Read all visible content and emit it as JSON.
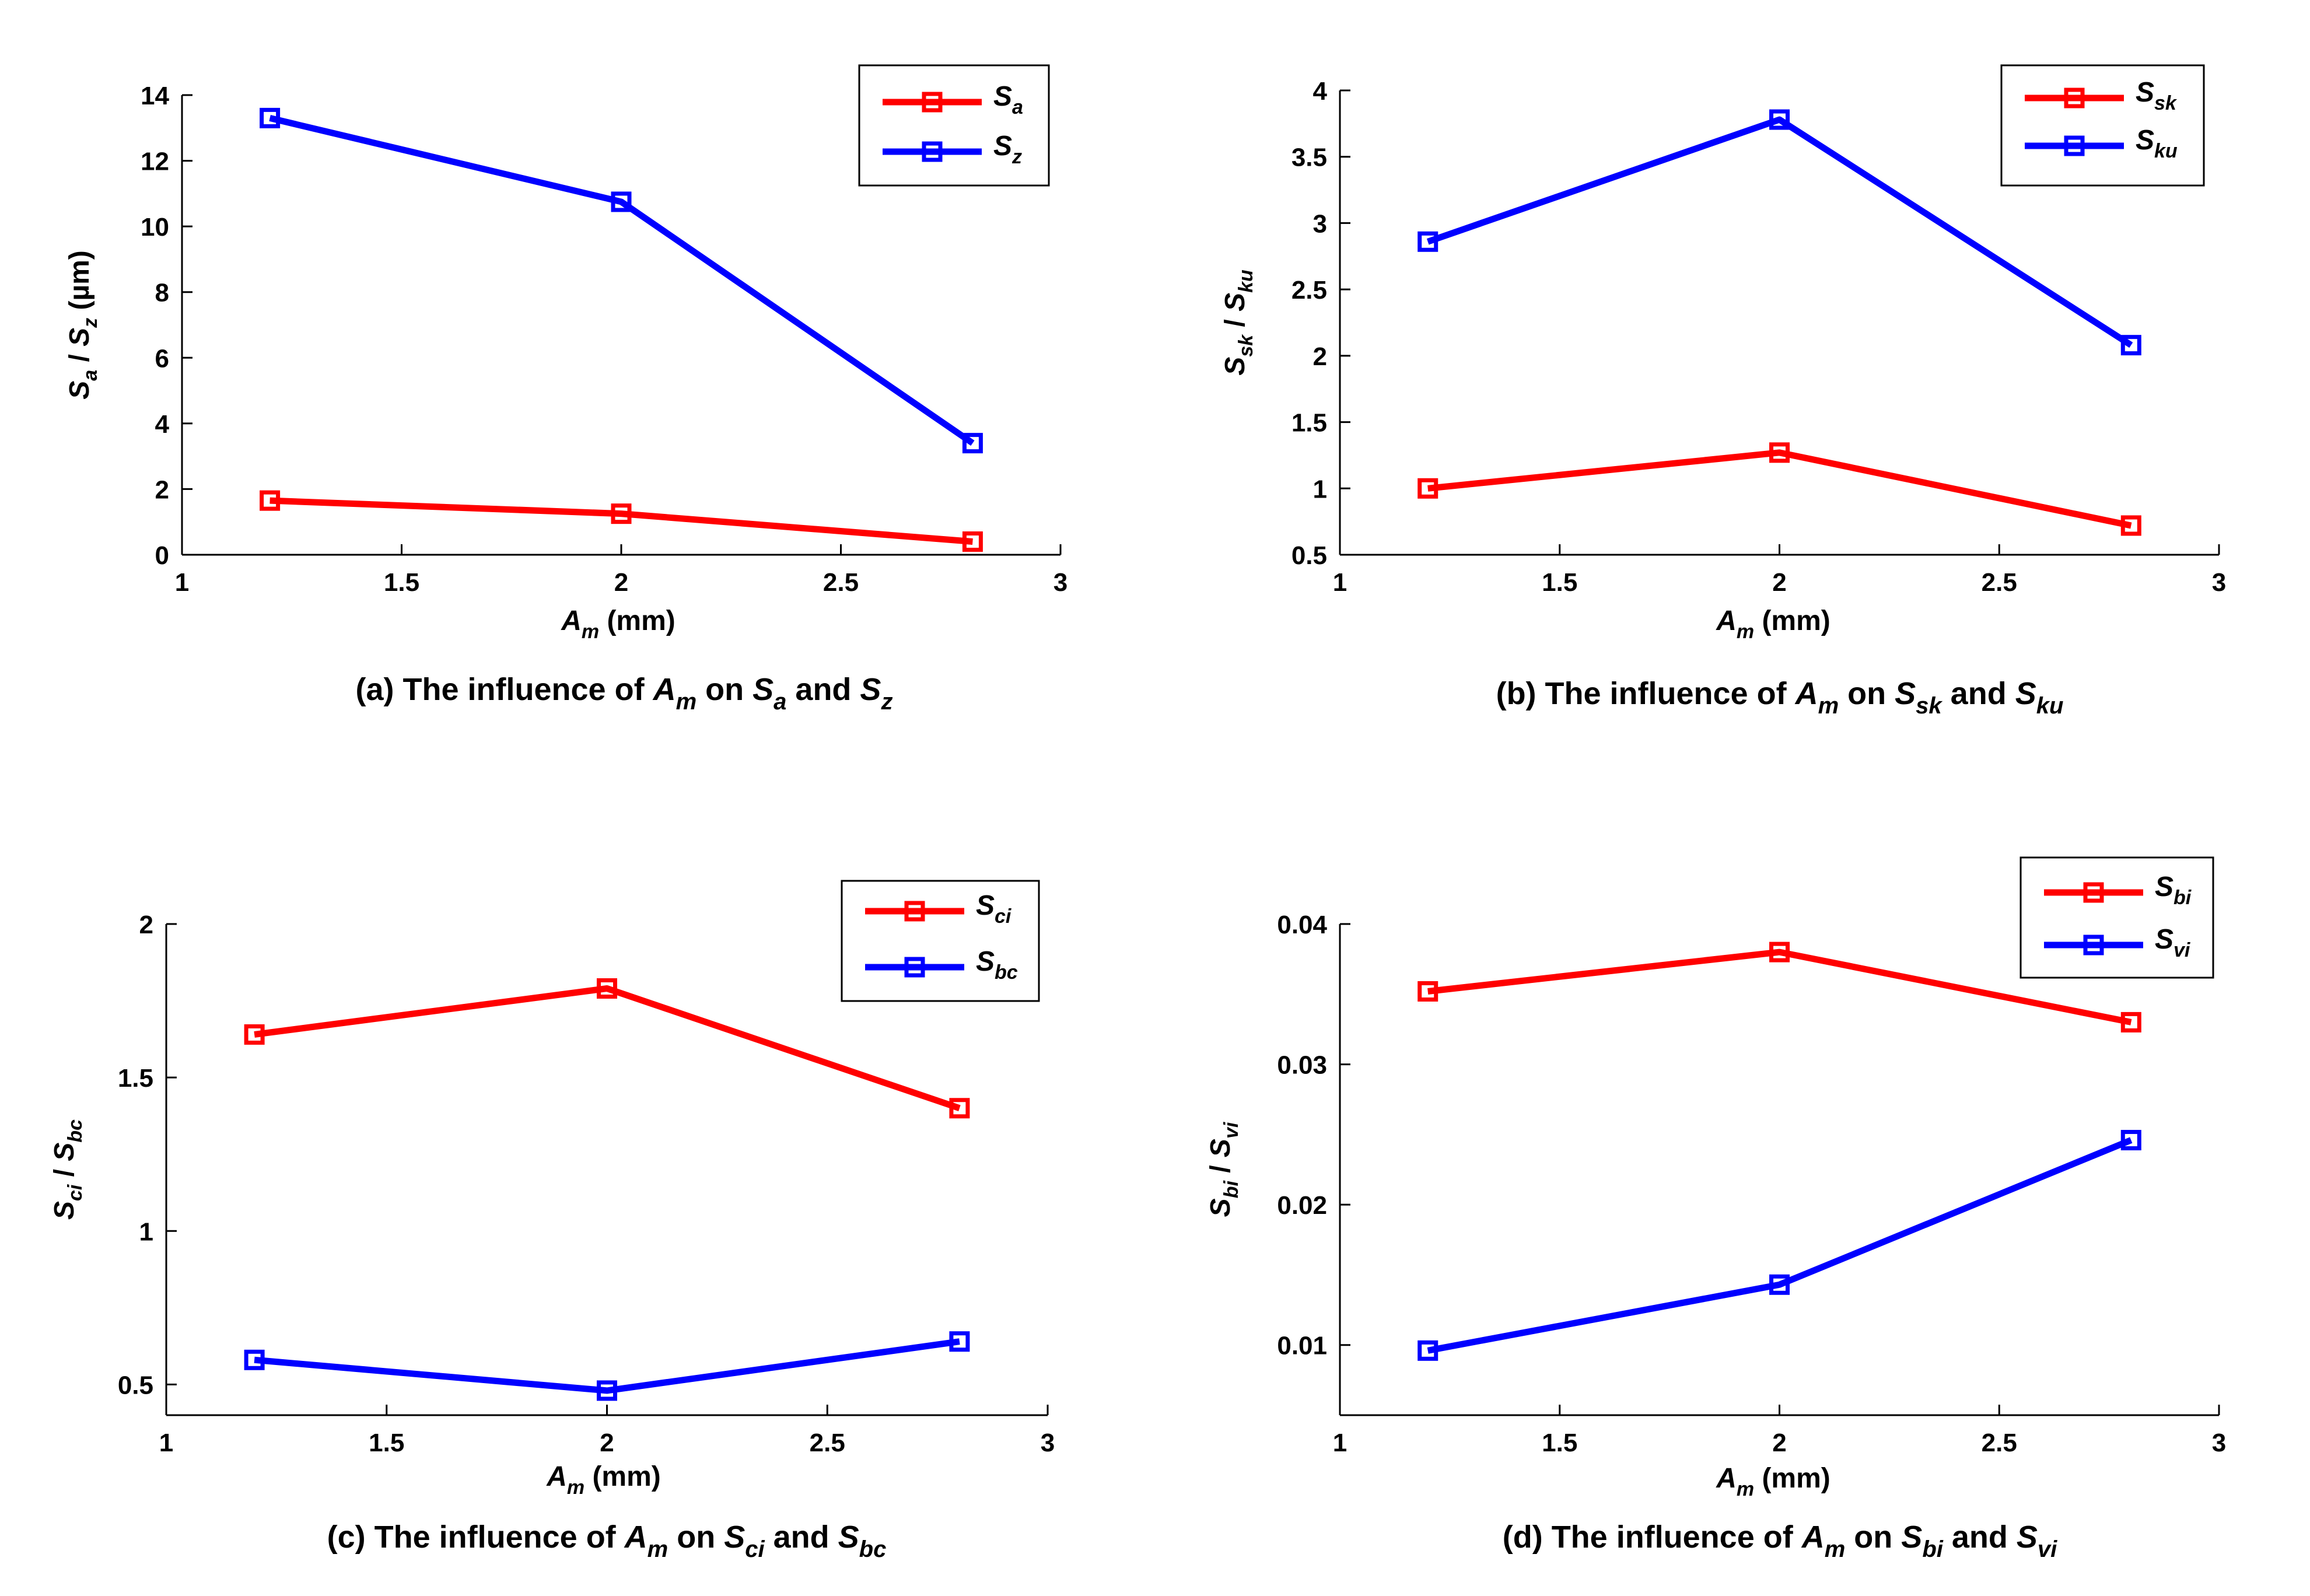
{
  "chart_data": [
    {
      "type": "line",
      "id": "a",
      "caption": {
        "prefix": "(a) The influence of ",
        "subject": "A",
        "subject_sub": "m",
        "mid": " on ",
        "p1": "S",
        "p1_sub": "a",
        "joiner": " and ",
        "p2": "S",
        "p2_sub": "z"
      },
      "xlabel": {
        "main": "A",
        "sub": "m",
        "unit": " (mm)"
      },
      "ylabel": {
        "s1": "S",
        "s1_sub": "a",
        "sep": " / ",
        "s2": "S",
        "s2_sub": "z",
        "unit": " (µm)"
      },
      "xlim": [
        1,
        3
      ],
      "ylim": [
        0,
        14
      ],
      "xticks": [
        1,
        1.5,
        2,
        2.5,
        3
      ],
      "xtick_labels": [
        "1",
        "1.5",
        "2",
        "2.5",
        "3"
      ],
      "yticks": [
        0,
        2,
        4,
        6,
        8,
        10,
        12,
        14
      ],
      "ytick_labels": [
        "0",
        "2",
        "4",
        "6",
        "8",
        "10",
        "12",
        "14"
      ],
      "x": [
        1.2,
        2.0,
        2.8
      ],
      "series": [
        {
          "name": "S",
          "sub": "a",
          "color": "#ff0000",
          "values": [
            1.65,
            1.25,
            0.4
          ]
        },
        {
          "name": "S",
          "sub": "z",
          "color": "#0000ff",
          "values": [
            13.3,
            10.75,
            3.4
          ]
        }
      ],
      "legend": "top-right",
      "grid": false
    },
    {
      "type": "line",
      "id": "b",
      "caption": {
        "prefix": "(b) The influence of ",
        "subject": "A",
        "subject_sub": "m",
        "mid": " on ",
        "p1": "S",
        "p1_sub": "sk",
        "joiner": " and ",
        "p2": "S",
        "p2_sub": "ku"
      },
      "xlabel": {
        "main": "A",
        "sub": "m",
        "unit": " (mm)"
      },
      "ylabel": {
        "s1": "S",
        "s1_sub": "sk",
        "sep": " / ",
        "s2": "S",
        "s2_sub": "ku",
        "unit": ""
      },
      "xlim": [
        1,
        3
      ],
      "ylim": [
        0.5,
        4
      ],
      "xticks": [
        1,
        1.5,
        2,
        2.5,
        3
      ],
      "xtick_labels": [
        "1",
        "1.5",
        "2",
        "2.5",
        "3"
      ],
      "yticks": [
        0.5,
        1,
        1.5,
        2,
        2.5,
        3,
        3.5,
        4
      ],
      "ytick_labels": [
        "0.5",
        "1",
        "1.5",
        "2",
        "2.5",
        "3",
        "3.5",
        "4"
      ],
      "x": [
        1.2,
        2.0,
        2.8
      ],
      "series": [
        {
          "name": "S",
          "sub": "sk",
          "color": "#ff0000",
          "values": [
            1.0,
            1.27,
            0.72
          ]
        },
        {
          "name": "S",
          "sub": "ku",
          "color": "#0000ff",
          "values": [
            2.86,
            3.78,
            2.08
          ]
        }
      ],
      "legend": "top-right",
      "grid": false
    },
    {
      "type": "line",
      "id": "c",
      "caption": {
        "prefix": "(c) The influence of ",
        "subject": "A",
        "subject_sub": "m",
        "mid": " on ",
        "p1": "S",
        "p1_sub": "ci",
        "joiner": " and ",
        "p2": "S",
        "p2_sub": "bc"
      },
      "xlabel": {
        "main": "A",
        "sub": "m",
        "unit": " (mm)"
      },
      "ylabel": {
        "s1": "S",
        "s1_sub": "ci",
        "sep": " / ",
        "s2": "S",
        "s2_sub": "bc",
        "unit": ""
      },
      "xlim": [
        1,
        3
      ],
      "ylim": [
        0.4,
        2
      ],
      "xticks": [
        1,
        1.5,
        2,
        2.5,
        3
      ],
      "xtick_labels": [
        "1",
        "1.5",
        "2",
        "2.5",
        "3"
      ],
      "yticks": [
        0.5,
        1,
        1.5,
        2
      ],
      "ytick_labels": [
        "0.5",
        "1",
        "1.5",
        "2"
      ],
      "x": [
        1.2,
        2.0,
        2.8
      ],
      "series": [
        {
          "name": "S",
          "sub": "ci",
          "color": "#ff0000",
          "values": [
            1.64,
            1.79,
            1.4
          ]
        },
        {
          "name": "S",
          "sub": "bc",
          "color": "#0000ff",
          "values": [
            0.58,
            0.48,
            0.64
          ]
        }
      ],
      "legend": "top-right",
      "grid": false
    },
    {
      "type": "line",
      "id": "d",
      "caption": {
        "prefix": "(d) The influence of ",
        "subject": "A",
        "subject_sub": "m",
        "mid": " on ",
        "p1": "S",
        "p1_sub": "bi",
        "joiner": " and ",
        "p2": "S",
        "p2_sub": "vi"
      },
      "xlabel": {
        "main": "A",
        "sub": "m",
        "unit": " (mm)"
      },
      "ylabel": {
        "s1": "S",
        "s1_sub": "bi",
        "sep": " / ",
        "s2": "S",
        "s2_sub": "vi",
        "unit": ""
      },
      "xlim": [
        1,
        3
      ],
      "ylim": [
        0.005,
        0.04
      ],
      "xticks": [
        1,
        1.5,
        2,
        2.5,
        3
      ],
      "xtick_labels": [
        "1",
        "1.5",
        "2",
        "2.5",
        "3"
      ],
      "yticks": [
        0.01,
        0.02,
        0.03,
        0.04
      ],
      "ytick_labels": [
        "0.01",
        "0.02",
        "0.03",
        "0.04"
      ],
      "x": [
        1.2,
        2.0,
        2.8
      ],
      "series": [
        {
          "name": "S",
          "sub": "bi",
          "color": "#ff0000",
          "values": [
            0.0352,
            0.038,
            0.033
          ]
        },
        {
          "name": "S",
          "sub": "vi",
          "color": "#0000ff",
          "values": [
            0.0096,
            0.0143,
            0.0246
          ]
        }
      ],
      "legend": "top-right",
      "grid": false
    }
  ]
}
